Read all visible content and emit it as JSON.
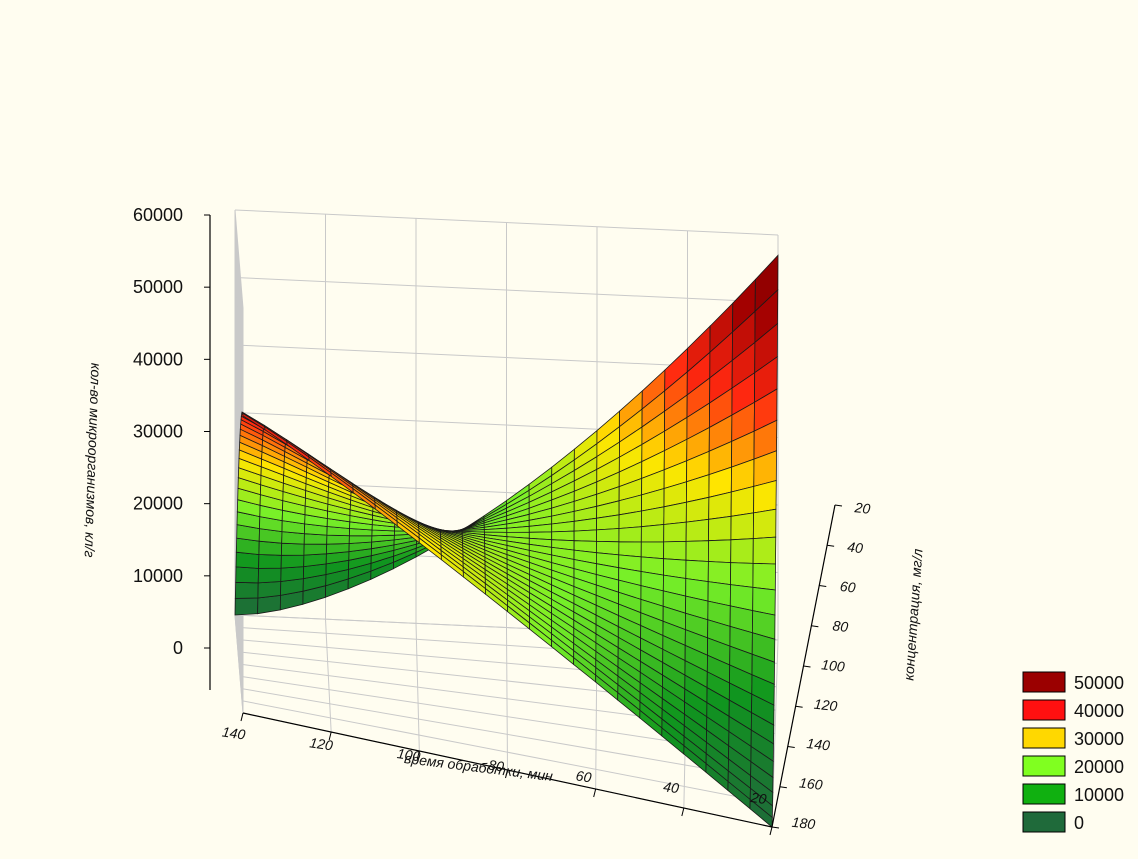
{
  "chart_data": {
    "type": "surface",
    "title": "",
    "zlabel": "кол-во микроорганизмов, кл/г",
    "xlabel": "время обработки, мин",
    "ylabel": "концентрация, мг/л",
    "x_ticks": [
      140,
      120,
      100,
      80,
      60,
      40,
      20
    ],
    "y_ticks": [
      20,
      40,
      60,
      80,
      100,
      120,
      140,
      160,
      180
    ],
    "z_ticks": [
      0,
      10000,
      20000,
      30000,
      40000,
      50000,
      60000
    ],
    "xlim": [
      20,
      140
    ],
    "ylim": [
      20,
      180
    ],
    "zlim": [
      0,
      60000
    ],
    "grid": true,
    "legend_position": "bottom-right",
    "legend": [
      {
        "label": "50000",
        "color": "#9b0000"
      },
      {
        "label": "40000",
        "color": "#ff1010"
      },
      {
        "label": "30000",
        "color": "#ffd800"
      },
      {
        "label": "20000",
        "color": "#80ff20"
      },
      {
        "label": "10000",
        "color": "#10b010"
      },
      {
        "label": "0",
        "color": "#1f6a3a"
      }
    ],
    "corner_values": [
      {
        "time": 140,
        "concentration": 20,
        "count": 0
      },
      {
        "time": 140,
        "concentration": 180,
        "count": 44000
      },
      {
        "time": 20,
        "concentration": 180,
        "count": 0
      },
      {
        "time": 20,
        "concentration": 20,
        "count": 57000
      }
    ]
  }
}
